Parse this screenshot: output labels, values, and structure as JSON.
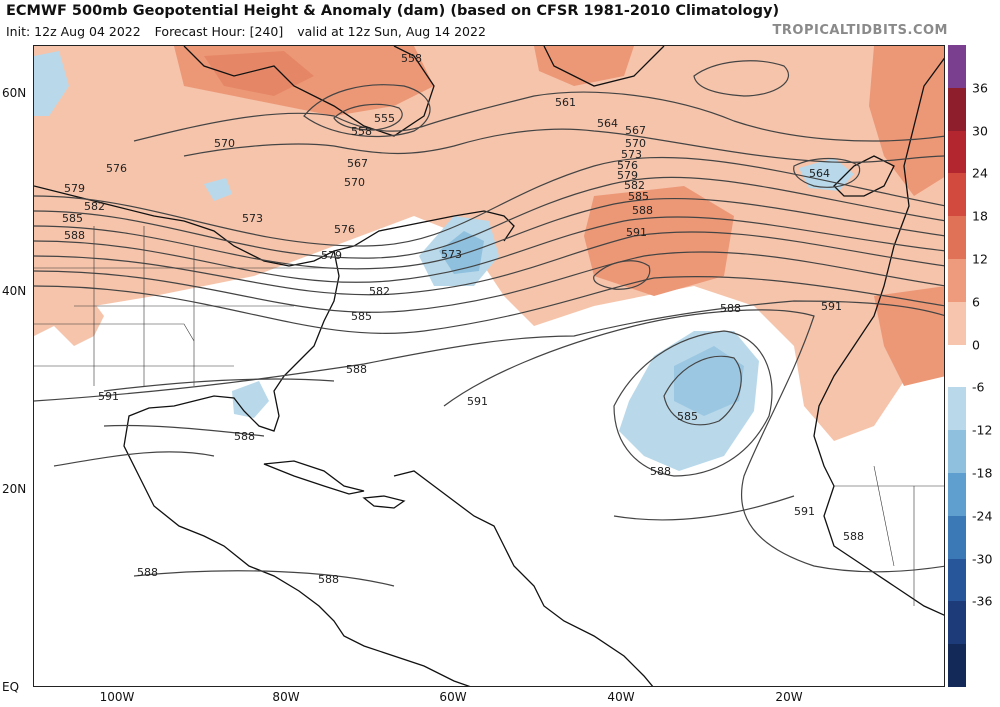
{
  "header": {
    "title": "ECMWF 500mb Geopotential Height & Anomaly (dam) (based on CFSR 1981-2010 Climatology)",
    "init": "Init: 12z Aug 04 2022",
    "forecast_hour": "Forecast Hour: [240]",
    "valid": "valid at 12z Sun, Aug 14 2022",
    "source": "TROPICALTIDBITS.COM"
  },
  "axes": {
    "lat_labels": [
      "60N",
      "40N",
      "20N",
      "EQ"
    ],
    "lon_labels": [
      "100W",
      "80W",
      "60W",
      "40W",
      "20W"
    ]
  },
  "colorbar": {
    "labels": [
      "36",
      "30",
      "24",
      "18",
      "12",
      "6",
      "0",
      "-6",
      "-12",
      "-18",
      "-24",
      "-30",
      "-36"
    ],
    "colors": [
      "#7a3f8f",
      "#8e1e2c",
      "#b3262f",
      "#d2493d",
      "#e07257",
      "#ee9a7c",
      "#f7c4ad",
      "#ffffff",
      "#b9d9ea",
      "#8fc0de",
      "#5f9fcf",
      "#3b79b6",
      "#27569a",
      "#1c3b78",
      "#132a59"
    ]
  },
  "contour_labels": {
    "c558": "558",
    "c555": "555",
    "c561": "561",
    "c564": "564",
    "c567": "567",
    "c570": "570",
    "c573": "573",
    "c576": "576",
    "c579": "579",
    "c582": "582",
    "c585": "585",
    "c588": "588",
    "c591": "591"
  }
}
